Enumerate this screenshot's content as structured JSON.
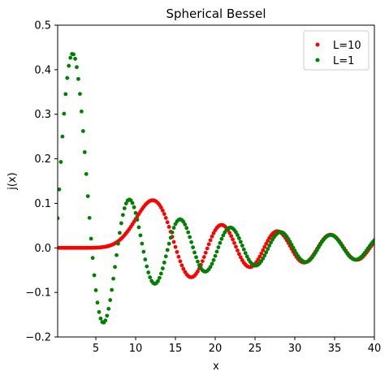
{
  "chart_data": {
    "type": "scatter",
    "title": "Spherical Bessel",
    "xlabel": "x",
    "ylabel": "j(x)",
    "xlim": [
      0.2,
      40
    ],
    "ylim": [
      -0.2,
      0.5
    ],
    "xticks": [
      5,
      10,
      15,
      20,
      25,
      30,
      35,
      40
    ],
    "yticks": [
      -0.2,
      -0.1,
      0.0,
      0.1,
      0.2,
      0.3,
      0.4,
      0.5
    ],
    "xtick_labels": [
      "5",
      "10",
      "15",
      "20",
      "25",
      "30",
      "35",
      "40"
    ],
    "ytick_labels": [
      "−0.2",
      "−0.1",
      "0.0",
      "0.1",
      "0.2",
      "0.3",
      "0.4",
      "0.5"
    ],
    "grid": false,
    "legend_position": "top-right",
    "x_range": [
      0.2,
      40
    ],
    "x_step": 0.2,
    "series": [
      {
        "name": "L=10",
        "order": 10,
        "color": "#ff0000",
        "marker": "circle"
      },
      {
        "name": "L=1",
        "order": 1,
        "color": "#008000",
        "marker": "circle"
      }
    ]
  }
}
